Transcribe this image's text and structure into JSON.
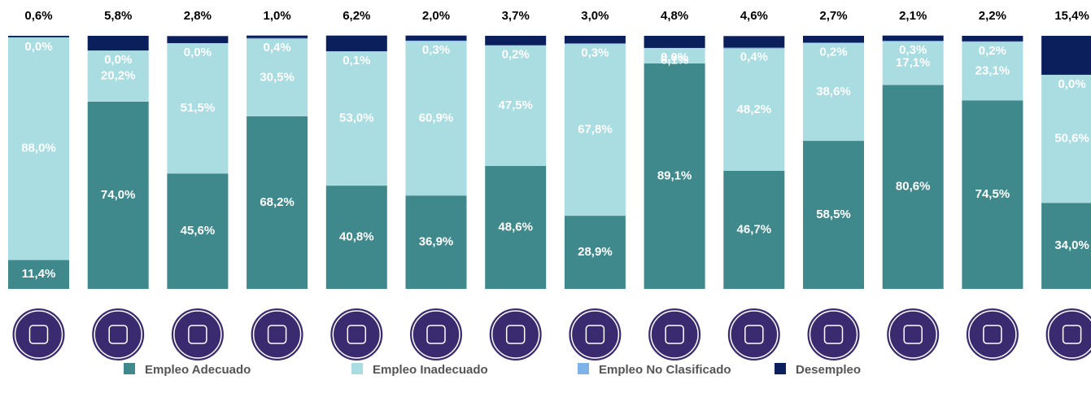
{
  "chart_data": {
    "type": "stacked_bar",
    "categories": [
      null,
      null,
      null,
      null,
      null,
      null,
      null,
      null,
      null,
      null,
      null,
      null,
      null,
      null
    ],
    "ylim": [
      0,
      100
    ],
    "series": [
      {
        "name": "Empleo Adecuado",
        "color": "#3f898c",
        "values": [
          11.4,
          74.0,
          45.6,
          68.2,
          40.8,
          36.9,
          48.6,
          28.9,
          89.1,
          46.7,
          58.5,
          80.6,
          74.5,
          34.0
        ],
        "value_labels": [
          "11,4%",
          "74,0%",
          "45,6%",
          "68,2%",
          "40,8%",
          "36,9%",
          "48,6%",
          "28,9%",
          "89,1%",
          "46,7%",
          "58,5%",
          "80,6%",
          "74,5%",
          "34,0%"
        ]
      },
      {
        "name": "Empleo Inadecuado",
        "color": "#a9dde2",
        "values": [
          88.0,
          20.2,
          51.5,
          30.5,
          53.0,
          60.9,
          47.5,
          67.8,
          6.1,
          48.2,
          38.6,
          17.1,
          23.1,
          50.6
        ],
        "value_labels": [
          "88,0%",
          "20,2%",
          "51,5%",
          "30,5%",
          "53,0%",
          "60,9%",
          "47,5%",
          "67,8%",
          "6,1%",
          "48,2%",
          "38,6%",
          "17,1%",
          "23,1%",
          "50,6%"
        ]
      },
      {
        "name": "Empleo No Clasificado",
        "color": "#7fb2e8",
        "values": [
          0.0,
          0.0,
          0.0,
          0.4,
          0.1,
          0.3,
          0.2,
          0.3,
          0.0,
          0.4,
          0.2,
          0.3,
          0.2,
          0.0
        ],
        "value_labels": [
          "0,0%",
          "0,0%",
          "0,0%",
          "0,4%",
          "0,1%",
          "0,3%",
          "0,2%",
          "0,3%",
          "0,0%",
          "0,4%",
          "0,2%",
          "0,3%",
          "0,2%",
          "0,0%"
        ]
      },
      {
        "name": "Desempleo",
        "color": "#0b1f5c",
        "values": [
          0.6,
          5.8,
          2.8,
          1.0,
          6.2,
          2.0,
          3.7,
          3.0,
          4.8,
          4.6,
          2.7,
          2.1,
          2.2,
          15.4
        ],
        "value_labels": [
          "0,6%",
          "5,8%",
          "2,8%",
          "1,0%",
          "6,2%",
          "2,0%",
          "3,7%",
          "3,0%",
          "4,8%",
          "4,6%",
          "2,7%",
          "2,1%",
          "2,2%",
          "15,4%"
        ]
      }
    ]
  }
}
